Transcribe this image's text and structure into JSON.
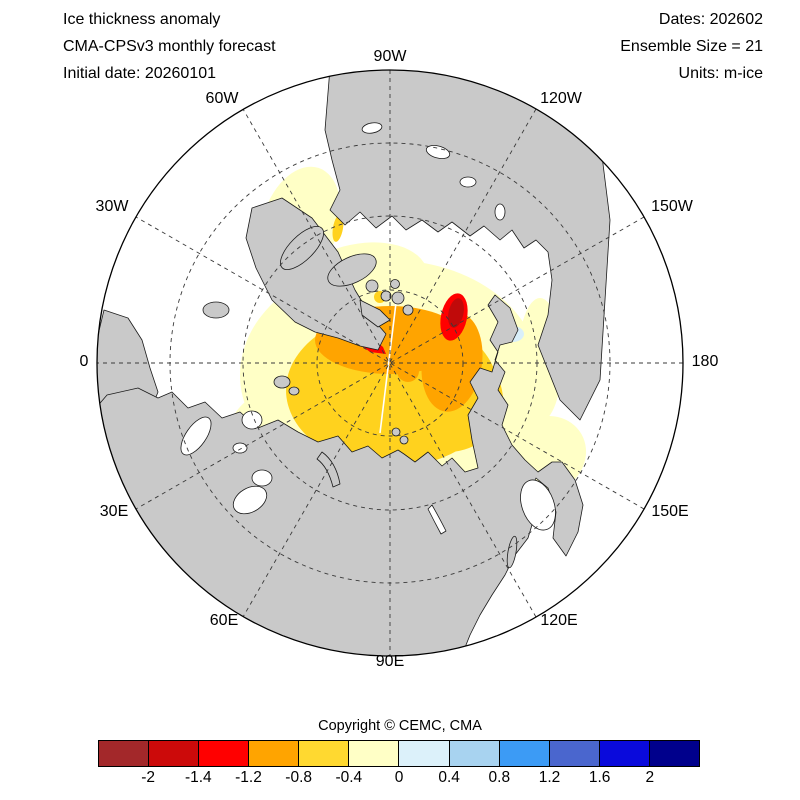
{
  "title_block": {
    "line1": "Ice thickness anomaly",
    "line2": "CMA-CPSv3 monthly forecast",
    "line3": "Initial date: 20260101"
  },
  "info_block": {
    "line1": "Dates: 202602",
    "line2": "Ensemble Size = 21",
    "line3": "Units: m-ice"
  },
  "map": {
    "projection_labels": [
      "90W",
      "120W",
      "150W",
      "180",
      "150E",
      "120E",
      "90E",
      "60E",
      "30E",
      "0",
      "30W",
      "60W"
    ],
    "colors": {
      "land": "#C9C9C9",
      "ocean": "#FFFFFF",
      "coastline": "#1A1A1A",
      "graticule": "#3A3A3A",
      "boundary": "#000000",
      "anom_neg04": "#FFFFC6",
      "anom_neg08": "#FFD21E",
      "anom_neg12": "#FFA400",
      "anom_neg14": "#FF0000",
      "anom_neg20": "#C00A0A",
      "anom_pos04": "#D9EFFA",
      "white_meridian": "#FFFFFF"
    }
  },
  "copyright": "Copyright © CEMC, CMA",
  "colorbar": {
    "tick_labels": [
      "-2",
      "-1.4",
      "-1.2",
      "-0.8",
      "-0.4",
      "0",
      "0.4",
      "0.8",
      "1.2",
      "1.6",
      "2"
    ],
    "colors": [
      "#A3282A",
      "#CC0A0A",
      "#FF0000",
      "#FFA400",
      "#FFD930",
      "#FFFFC6",
      "#DCF1FA",
      "#A8D3F0",
      "#3C9BF5",
      "#4A66CE",
      "#0A0ADC",
      "#00008C"
    ],
    "units": "m-ice"
  }
}
